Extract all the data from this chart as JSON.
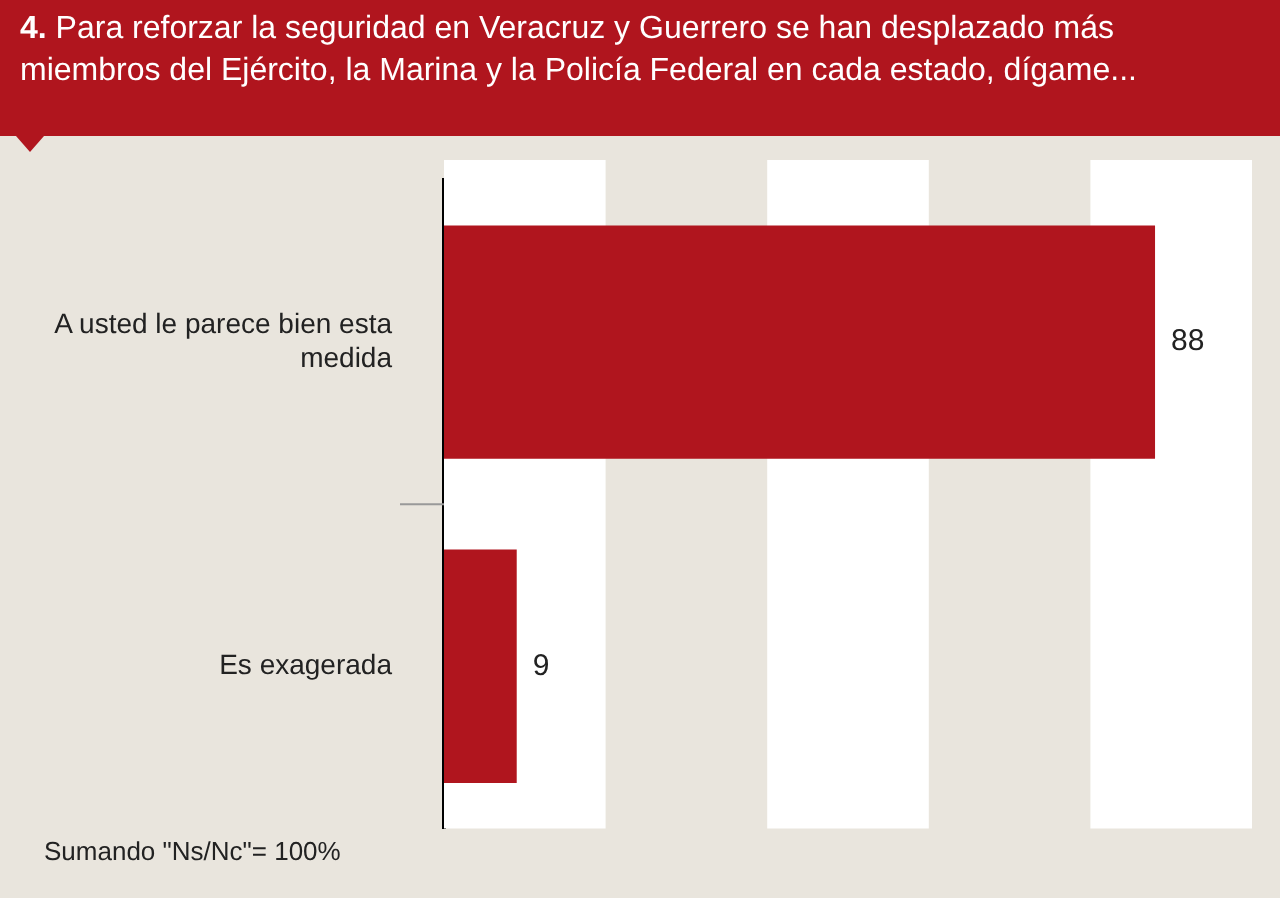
{
  "chart_data": {
    "type": "bar",
    "orientation": "horizontal",
    "title": "4. Para reforzar la seguridad en Veracruz y Guerrero se han desplazado más miembros del Ejército, la Marina y la Policía Federal en cada estado, dígame...",
    "categories": [
      "A usted le parece bien esta medida",
      "Es exagerada"
    ],
    "values": [
      88,
      9
    ],
    "color": "#b0151e",
    "xlim": [
      0,
      100
    ],
    "data_labels": true,
    "legend": false,
    "bands": [
      {
        "axis": "x",
        "from": 0,
        "to": 20,
        "color": "#ffffff"
      },
      {
        "axis": "x",
        "from": 40,
        "to": 60,
        "color": "#ffffff"
      },
      {
        "axis": "x",
        "from": 80,
        "to": 100,
        "color": "#ffffff"
      }
    ],
    "annotations": [
      "Sumando \"Ns/Nc\"= 100%"
    ]
  }
}
